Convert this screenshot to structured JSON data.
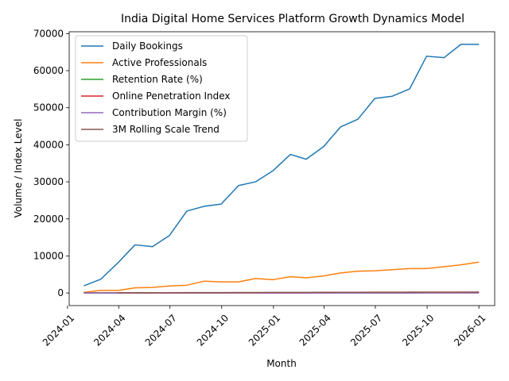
{
  "chart_data": {
    "type": "line",
    "title": "India Digital Home Services Platform Growth Dynamics Model",
    "xlabel": "Month",
    "ylabel": "Volume / Index Level",
    "ylim": [
      -3400,
      70500
    ],
    "yticks": [
      0,
      10000,
      20000,
      30000,
      40000,
      50000,
      60000,
      70000
    ],
    "ytick_labels": [
      "0",
      "10000",
      "20000",
      "30000",
      "40000",
      "50000",
      "60000",
      "70000"
    ],
    "xlim": [
      "2024-01-04",
      "2026-01-29"
    ],
    "xticks": [
      "2024-01-01",
      "2024-04-01",
      "2024-07-01",
      "2024-10-01",
      "2025-01-01",
      "2025-04-01",
      "2025-07-01",
      "2025-10-01",
      "2026-01-01"
    ],
    "xtick_labels": [
      "2024-01",
      "2024-04",
      "2024-07",
      "2024-10",
      "2025-01",
      "2025-04",
      "2025-07",
      "2025-10",
      "2026-01"
    ],
    "x": [
      "2024-01-31",
      "2024-02-29",
      "2024-03-31",
      "2024-04-30",
      "2024-05-31",
      "2024-06-30",
      "2024-07-31",
      "2024-08-31",
      "2024-09-30",
      "2024-10-31",
      "2024-11-30",
      "2024-12-31",
      "2025-01-31",
      "2025-02-28",
      "2025-03-31",
      "2025-04-30",
      "2025-05-31",
      "2025-06-30",
      "2025-07-31",
      "2025-08-31",
      "2025-09-30",
      "2025-10-31",
      "2025-11-30",
      "2025-12-31"
    ],
    "legend_position": "top-left",
    "series": [
      {
        "name": "Daily Bookings",
        "color": "#1f77b4",
        "values": [
          2000,
          3700,
          8200,
          13000,
          12500,
          15500,
          22100,
          23400,
          24000,
          29000,
          30000,
          33000,
          37400,
          36100,
          39500,
          44800,
          46900,
          52500,
          53100,
          55100,
          63900,
          63500,
          67100,
          67100
        ]
      },
      {
        "name": "Active Professionals",
        "color": "#ff7f0e",
        "values": [
          200,
          700,
          700,
          1400,
          1500,
          1900,
          2100,
          3200,
          3000,
          3000,
          3900,
          3600,
          4400,
          4100,
          4600,
          5400,
          5900,
          6000,
          6300,
          6600,
          6600,
          7100,
          7600,
          8300
        ]
      },
      {
        "name": "Retention Rate (%)",
        "color": "#2ca02c",
        "values": [
          40,
          42,
          44,
          46,
          47,
          49,
          50,
          52,
          53,
          55,
          56,
          57,
          58,
          60,
          61,
          62,
          63,
          64,
          65,
          66,
          67,
          68,
          69,
          70
        ]
      },
      {
        "name": "Online Penetration Index",
        "color": "#d62728",
        "values": [
          10,
          12,
          14,
          16,
          18,
          20,
          22,
          25,
          27,
          29,
          32,
          34,
          36,
          38,
          41,
          43,
          46,
          48,
          50,
          53,
          55,
          58,
          60,
          62
        ]
      },
      {
        "name": "Contribution Margin (%)",
        "color": "#9467bd",
        "values": [
          -5,
          -4,
          -3,
          -2,
          -1,
          0,
          1,
          2,
          3,
          4,
          5,
          6,
          7,
          8,
          9,
          10,
          11,
          12,
          12,
          13,
          14,
          15,
          15,
          16
        ]
      },
      {
        "name": "3M Rolling Scale Trend",
        "color": "#8c564b",
        "values": [
          null,
          null,
          45,
          60,
          75,
          85,
          95,
          110,
          120,
          130,
          140,
          150,
          160,
          170,
          180,
          190,
          200,
          210,
          220,
          230,
          240,
          250,
          255,
          260
        ]
      }
    ]
  }
}
